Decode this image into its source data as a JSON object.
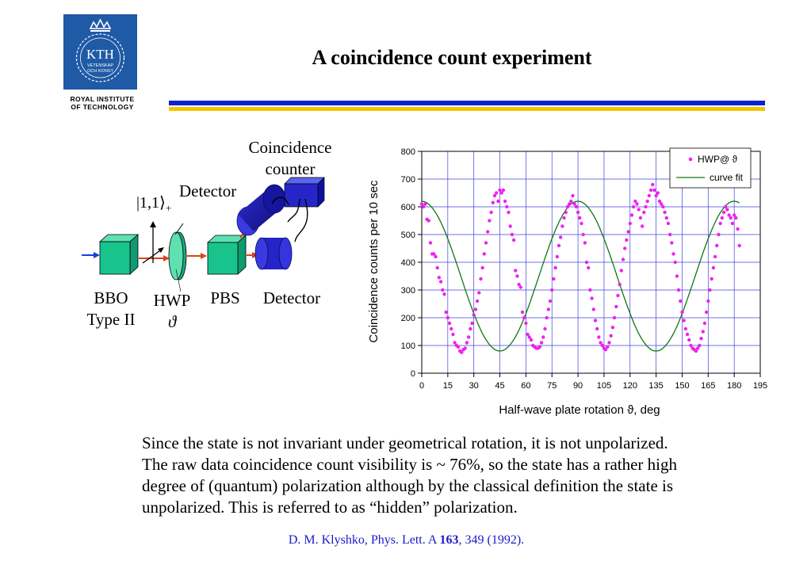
{
  "logo": {
    "top_text": "KTH",
    "sub_text_1": "VETENSKAP",
    "sub_text_2": "OCH KONST",
    "caption_line1": "ROYAL INSTITUTE",
    "caption_line2": "OF TECHNOLOGY"
  },
  "slide": {
    "title": "A coincidence count experiment"
  },
  "setup": {
    "coincidence_line1": "Coincidence",
    "coincidence_line2": "counter",
    "detector_top": "Detector",
    "state_label": "|1,1⟩",
    "state_sub": "+",
    "bbo_line1": "BBO",
    "bbo_line2": "Type II",
    "hwp_line1": "HWP",
    "hwp_line2": "ϑ",
    "pbs": "PBS",
    "detector_bottom": "Detector"
  },
  "chart_data": {
    "type": "scatter",
    "xlabel": "Half-wave plate rotation ϑ, deg",
    "ylabel": "Coincidence counts per 10 sec",
    "xlim": [
      0,
      195
    ],
    "ylim": [
      0,
      800
    ],
    "xticks": [
      0,
      15,
      30,
      45,
      60,
      75,
      90,
      105,
      120,
      135,
      150,
      165,
      180,
      195
    ],
    "yticks": [
      0,
      100,
      200,
      300,
      400,
      500,
      600,
      700,
      800
    ],
    "grid": true,
    "legend_position": "top-right",
    "colors": {
      "points": "#ee22ee",
      "fit": "#117711",
      "grid": "#4040dd"
    },
    "series": [
      {
        "name": "HWP@ ϑ",
        "kind": "points",
        "points": [
          [
            0,
            610
          ],
          [
            1,
            600
          ],
          [
            2,
            610
          ],
          [
            3,
            555
          ],
          [
            4,
            550
          ],
          [
            5,
            470
          ],
          [
            6,
            430
          ],
          [
            7,
            430
          ],
          [
            8,
            420
          ],
          [
            9,
            380
          ],
          [
            10,
            345
          ],
          [
            11,
            330
          ],
          [
            12,
            300
          ],
          [
            13,
            285
          ],
          [
            14,
            220
          ],
          [
            15,
            200
          ],
          [
            16,
            180
          ],
          [
            17,
            160
          ],
          [
            18,
            140
          ],
          [
            19,
            110
          ],
          [
            20,
            100
          ],
          [
            21,
            95
          ],
          [
            22,
            80
          ],
          [
            23,
            75
          ],
          [
            24,
            85
          ],
          [
            25,
            90
          ],
          [
            26,
            110
          ],
          [
            27,
            130
          ],
          [
            28,
            160
          ],
          [
            29,
            180
          ],
          [
            30,
            210
          ],
          [
            31,
            230
          ],
          [
            32,
            260
          ],
          [
            33,
            290
          ],
          [
            34,
            340
          ],
          [
            35,
            380
          ],
          [
            36,
            430
          ],
          [
            37,
            470
          ],
          [
            38,
            510
          ],
          [
            39,
            550
          ],
          [
            40,
            580
          ],
          [
            41,
            615
          ],
          [
            42,
            640
          ],
          [
            43,
            650
          ],
          [
            44,
            620
          ],
          [
            45,
            660
          ],
          [
            46,
            650
          ],
          [
            47,
            660
          ],
          [
            48,
            620
          ],
          [
            49,
            600
          ],
          [
            50,
            580
          ],
          [
            51,
            530
          ],
          [
            52,
            500
          ],
          [
            53,
            480
          ],
          [
            54,
            370
          ],
          [
            55,
            350
          ],
          [
            56,
            320
          ],
          [
            57,
            310
          ],
          [
            58,
            220
          ],
          [
            59,
            200
          ],
          [
            60,
            180
          ],
          [
            61,
            140
          ],
          [
            62,
            130
          ],
          [
            63,
            120
          ],
          [
            64,
            100
          ],
          [
            65,
            95
          ],
          [
            66,
            90
          ],
          [
            67,
            90
          ],
          [
            68,
            95
          ],
          [
            69,
            110
          ],
          [
            70,
            130
          ],
          [
            71,
            160
          ],
          [
            72,
            200
          ],
          [
            73,
            230
          ],
          [
            74,
            260
          ],
          [
            75,
            300
          ],
          [
            76,
            340
          ],
          [
            77,
            380
          ],
          [
            78,
            420
          ],
          [
            79,
            460
          ],
          [
            80,
            490
          ],
          [
            81,
            530
          ],
          [
            82,
            560
          ],
          [
            83,
            580
          ],
          [
            84,
            600
          ],
          [
            85,
            610
          ],
          [
            86,
            620
          ],
          [
            87,
            640
          ],
          [
            88,
            610
          ],
          [
            89,
            600
          ],
          [
            90,
            580
          ],
          [
            91,
            560
          ],
          [
            92,
            540
          ],
          [
            93,
            500
          ],
          [
            94,
            470
          ],
          [
            95,
            400
          ],
          [
            96,
            380
          ],
          [
            97,
            300
          ],
          [
            98,
            270
          ],
          [
            99,
            230
          ],
          [
            100,
            190
          ],
          [
            101,
            160
          ],
          [
            102,
            130
          ],
          [
            103,
            110
          ],
          [
            104,
            100
          ],
          [
            105,
            90
          ],
          [
            106,
            85
          ],
          [
            107,
            95
          ],
          [
            108,
            110
          ],
          [
            109,
            135
          ],
          [
            110,
            165
          ],
          [
            111,
            200
          ],
          [
            112,
            240
          ],
          [
            113,
            280
          ],
          [
            114,
            320
          ],
          [
            115,
            370
          ],
          [
            116,
            410
          ],
          [
            117,
            450
          ],
          [
            118,
            480
          ],
          [
            119,
            510
          ],
          [
            120,
            540
          ],
          [
            121,
            570
          ],
          [
            122,
            600
          ],
          [
            123,
            620
          ],
          [
            124,
            610
          ],
          [
            125,
            590
          ],
          [
            126,
            560
          ],
          [
            127,
            530
          ],
          [
            128,
            580
          ],
          [
            129,
            600
          ],
          [
            130,
            620
          ],
          [
            131,
            640
          ],
          [
            132,
            660
          ],
          [
            133,
            680
          ],
          [
            134,
            660
          ],
          [
            135,
            640
          ],
          [
            136,
            650
          ],
          [
            137,
            620
          ],
          [
            138,
            610
          ],
          [
            139,
            600
          ],
          [
            140,
            580
          ],
          [
            141,
            560
          ],
          [
            142,
            540
          ],
          [
            143,
            500
          ],
          [
            144,
            470
          ],
          [
            145,
            430
          ],
          [
            146,
            400
          ],
          [
            147,
            350
          ],
          [
            148,
            300
          ],
          [
            149,
            260
          ],
          [
            150,
            220
          ],
          [
            151,
            190
          ],
          [
            152,
            160
          ],
          [
            153,
            140
          ],
          [
            154,
            120
          ],
          [
            155,
            100
          ],
          [
            156,
            90
          ],
          [
            157,
            85
          ],
          [
            158,
            80
          ],
          [
            159,
            90
          ],
          [
            160,
            100
          ],
          [
            161,
            125
          ],
          [
            162,
            150
          ],
          [
            163,
            180
          ],
          [
            164,
            220
          ],
          [
            165,
            260
          ],
          [
            166,
            300
          ],
          [
            167,
            340
          ],
          [
            168,
            380
          ],
          [
            169,
            420
          ],
          [
            170,
            460
          ],
          [
            171,
            500
          ],
          [
            172,
            540
          ],
          [
            173,
            560
          ],
          [
            174,
            580
          ],
          [
            175,
            600
          ],
          [
            176,
            590
          ],
          [
            177,
            570
          ],
          [
            178,
            560
          ],
          [
            179,
            540
          ],
          [
            180,
            570
          ],
          [
            181,
            560
          ],
          [
            182,
            520
          ],
          [
            183,
            460
          ]
        ]
      },
      {
        "name": "curve fit",
        "kind": "line",
        "model": "y = 350 + 270*cos(4*x deg)"
      }
    ]
  },
  "body": {
    "paragraph_line1": "Since the state is not invariant under geometrical rotation, it is not unpolarized.",
    "paragraph_line2": "The raw data coincidence count visibility is ~ 76%, so the state has a rather high",
    "paragraph_line3": "degree of (quantum) polarization although by the classical definition the state is",
    "paragraph_line4": "unpolarized. This is referred to as “hidden” polarization.",
    "citation_pre": "D. M. Klyshko, Phys. Lett. A ",
    "citation_vol": "163",
    "citation_post": ", 349 (1992)."
  }
}
